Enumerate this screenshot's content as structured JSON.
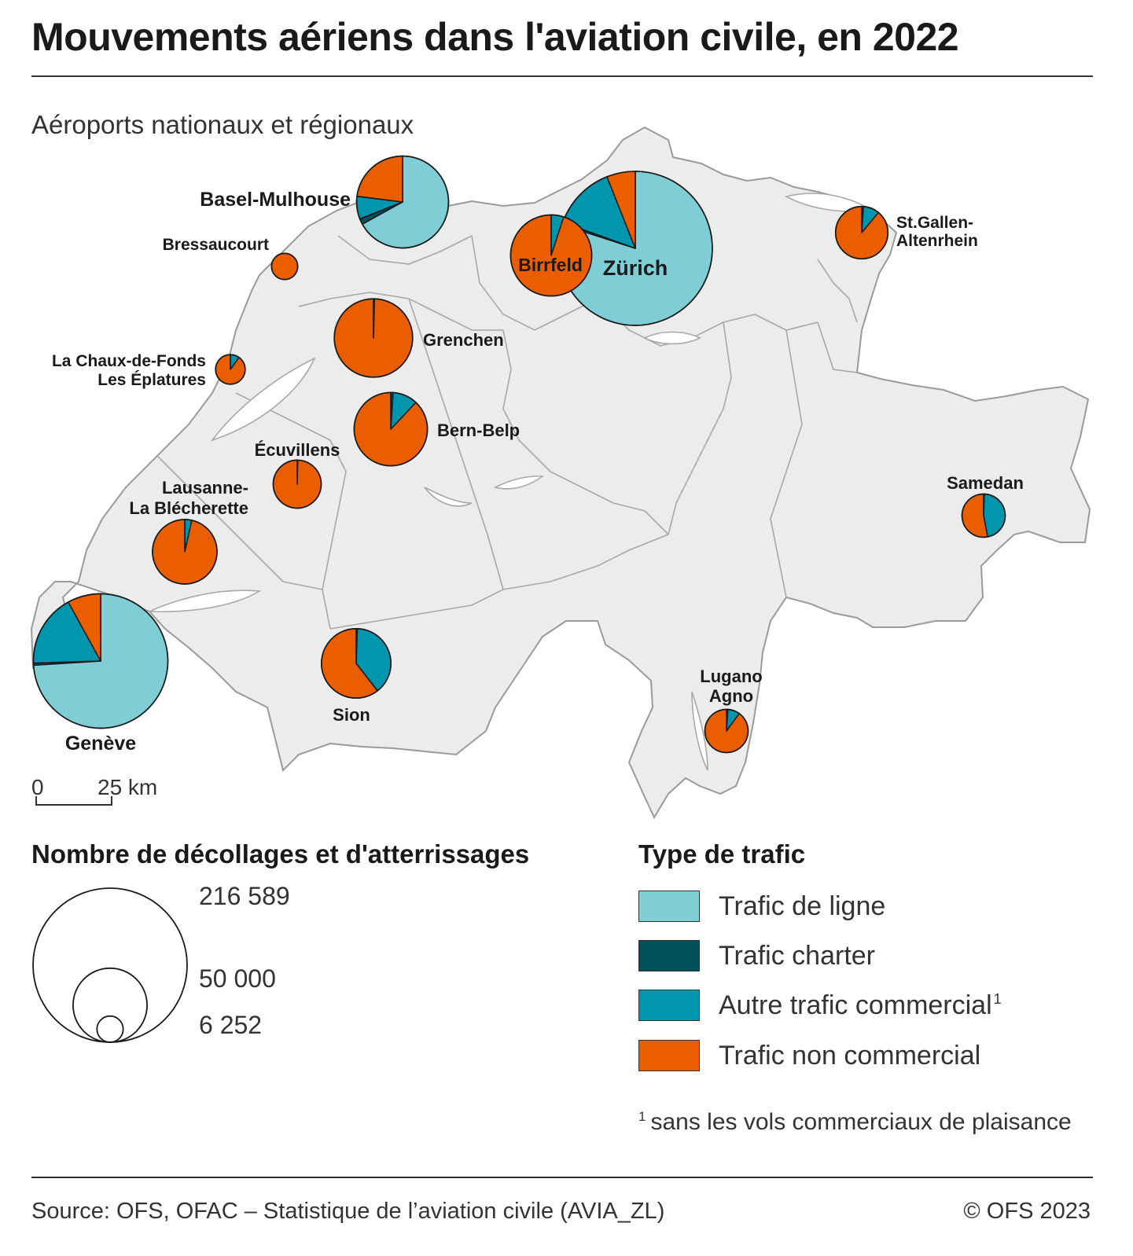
{
  "title": "Mouvements aériens dans l'aviation civile, en 2022",
  "subtitle": "Aéroports nationaux et régionaux",
  "colors": {
    "ligne": "#7fcdd5",
    "charter": "#00505c",
    "autre": "#0096ad",
    "non_commercial": "#eb5e00",
    "land": "#ececec",
    "border": "#9a9a9a"
  },
  "scale_bar": {
    "start": "0",
    "end": "25 km"
  },
  "size_legend": {
    "title": "Nombre de décollages et d'atterrissages",
    "values": [
      "216 589",
      "50 000",
      "6 252"
    ],
    "numbers": [
      216589,
      50000,
      6252
    ]
  },
  "type_legend": {
    "title": "Type de trafic",
    "items": [
      {
        "key": "ligne",
        "label": "Trafic de ligne"
      },
      {
        "key": "charter",
        "label": "Trafic charter"
      },
      {
        "key": "autre",
        "label": "Autre trafic commercial",
        "sup": "1"
      },
      {
        "key": "non_commercial",
        "label": "Trafic non commercial"
      }
    ]
  },
  "footnote": {
    "sup": "1",
    "text": "sans les vols commerciaux de plaisance"
  },
  "source": "Source: OFS, OFAC – Statistique de l’aviation civile (AVIA_ZL)",
  "copyright": "© OFS 2023",
  "chart_data": {
    "type": "pie",
    "airports": [
      {
        "label": [
          "Zürich"
        ],
        "total": 216589,
        "shares": {
          "ligne": 0.8,
          "charter": 0.005,
          "autre": 0.135,
          "non_commercial": 0.06
        }
      },
      {
        "label": [
          "Genève"
        ],
        "total": 165000,
        "shares": {
          "ligne": 0.74,
          "charter": 0.005,
          "autre": 0.175,
          "non_commercial": 0.08
        }
      },
      {
        "label": [
          "Basel-Mulhouse"
        ],
        "total": 77000,
        "shares": {
          "ligne": 0.67,
          "charter": 0.02,
          "autre": 0.08,
          "non_commercial": 0.23
        }
      },
      {
        "label": [
          "Birrfeld"
        ],
        "total": 60000,
        "shares": {
          "ligne": 0.0,
          "charter": 0.0,
          "autre": 0.05,
          "non_commercial": 0.95
        }
      },
      {
        "label": [
          "Grenchen"
        ],
        "total": 56000,
        "shares": {
          "ligne": 0.0,
          "charter": 0.0,
          "autre": 0.004,
          "non_commercial": 0.996
        }
      },
      {
        "label": [
          "Bern-Belp"
        ],
        "total": 49000,
        "shares": {
          "ligne": 0.0,
          "charter": 0.01,
          "autre": 0.11,
          "non_commercial": 0.88
        }
      },
      {
        "label": [
          "Sion"
        ],
        "total": 44000,
        "shares": {
          "ligne": 0.0,
          "charter": 0.005,
          "autre": 0.39,
          "non_commercial": 0.605
        }
      },
      {
        "label": [
          "Lausanne-",
          "La Blécherette"
        ],
        "total": 38000,
        "shares": {
          "ligne": 0.0,
          "charter": 0.0,
          "autre": 0.035,
          "non_commercial": 0.965
        }
      },
      {
        "label": [
          "St.Gallen-",
          "Altenrhein"
        ],
        "total": 25000,
        "shares": {
          "ligne": 0.005,
          "charter": 0.005,
          "autre": 0.1,
          "non_commercial": 0.89
        }
      },
      {
        "label": [
          "Écuvillens"
        ],
        "total": 21000,
        "shares": {
          "ligne": 0.0,
          "charter": 0.0,
          "autre": 0.003,
          "non_commercial": 0.997
        }
      },
      {
        "label": [
          "Lugano",
          "Agno"
        ],
        "total": 17000,
        "shares": {
          "ligne": 0.0,
          "charter": 0.01,
          "autre": 0.09,
          "non_commercial": 0.9
        }
      },
      {
        "label": [
          "Samedan"
        ],
        "total": 17000,
        "shares": {
          "ligne": 0.0,
          "charter": 0.005,
          "autre": 0.465,
          "non_commercial": 0.53
        }
      },
      {
        "label": [
          "La Chaux-de-Fonds",
          "Les Éplatures"
        ],
        "total": 8000,
        "shares": {
          "ligne": 0.0,
          "charter": 0.0,
          "autre": 0.1,
          "non_commercial": 0.9
        }
      },
      {
        "label": [
          "Bressaucourt"
        ],
        "total": 6252,
        "shares": {
          "ligne": 0.0,
          "charter": 0.0,
          "autre": 0.0,
          "non_commercial": 1.0
        }
      }
    ]
  }
}
